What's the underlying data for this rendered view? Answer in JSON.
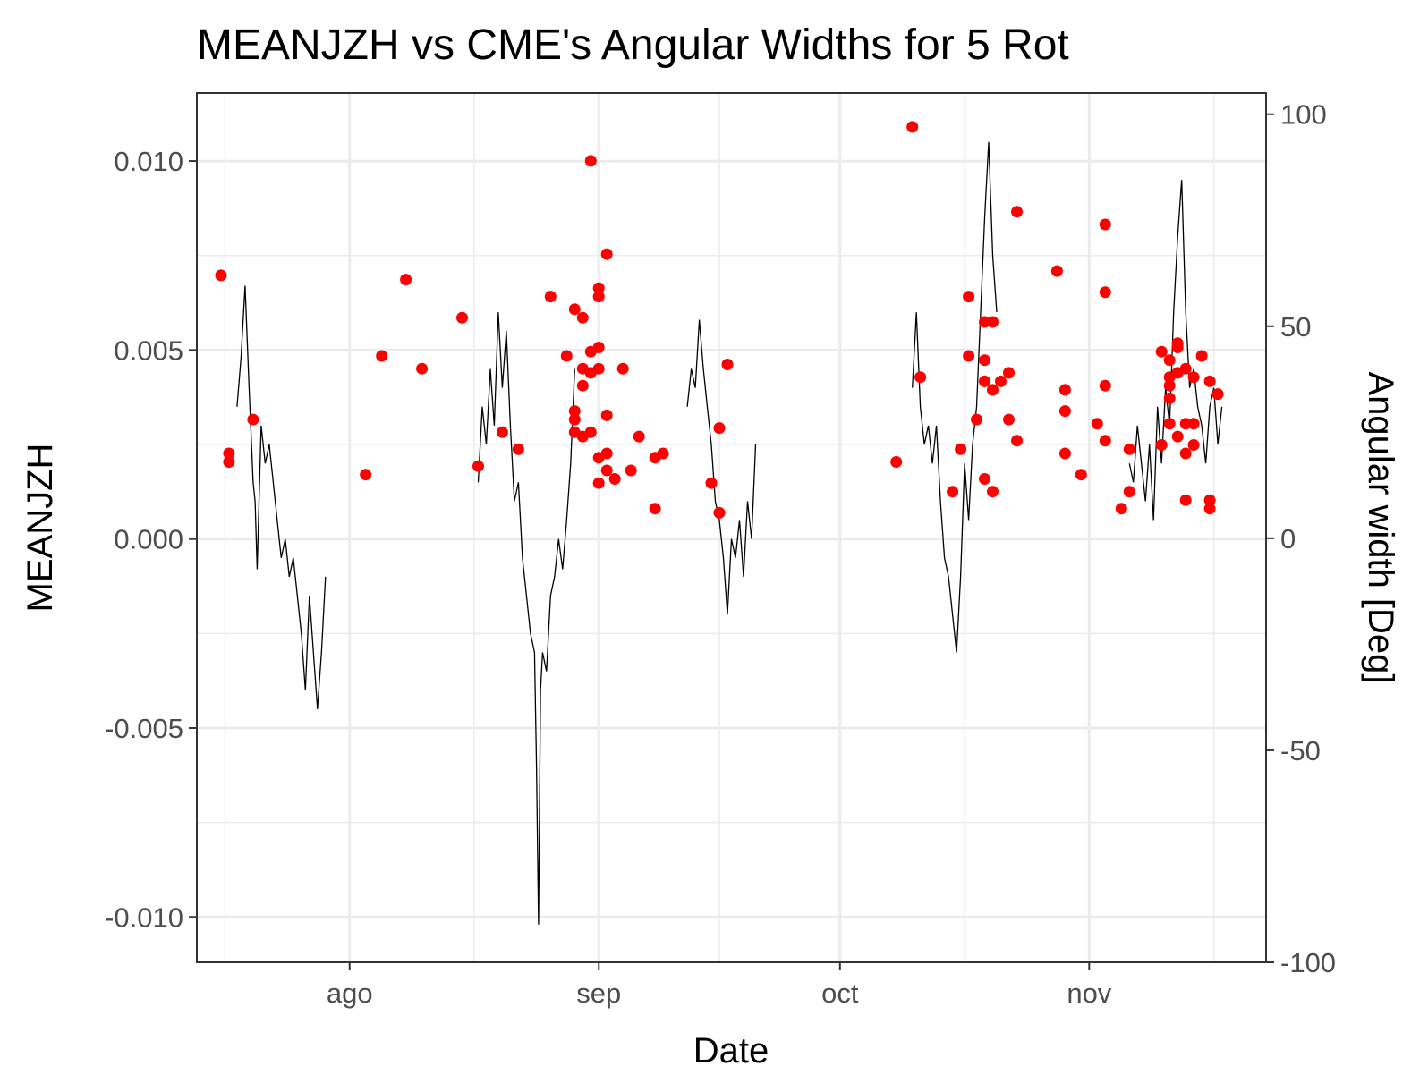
{
  "chart_data": {
    "type": "line",
    "title": "MEANJZH vs  CME's Angular Widths for 5 Rot",
    "xlabel": "Date",
    "ylabel": "MEANJZH",
    "y2label": "Angular width [Deg]",
    "x_range": [
      "2014-07-13",
      "2014-11-23"
    ],
    "ylim": [
      -0.0112,
      0.0118
    ],
    "y2lim": [
      -100,
      105
    ],
    "grid": true,
    "legend": "none",
    "x_ticks": [
      {
        "date": "2014-08-01",
        "label": "ago"
      },
      {
        "date": "2014-09-01",
        "label": "sep"
      },
      {
        "date": "2014-10-01",
        "label": "oct"
      },
      {
        "date": "2014-11-01",
        "label": "nov"
      }
    ],
    "y_ticks": [
      {
        "value": 0.01,
        "label": "0.010"
      },
      {
        "value": 0.005,
        "label": "0.005"
      },
      {
        "value": 0.0,
        "label": "0.000"
      },
      {
        "value": -0.005,
        "label": "-0.005"
      },
      {
        "value": -0.01,
        "label": "-0.010"
      }
    ],
    "y2_ticks": [
      {
        "value": 100,
        "label": "100"
      },
      {
        "value": 50,
        "label": "50"
      },
      {
        "value": 0,
        "label": "0"
      },
      {
        "value": -50,
        "label": "-50"
      },
      {
        "value": -100,
        "label": "-100"
      }
    ],
    "series": [
      {
        "axis": "left",
        "color": "#000000",
        "segments": [
          [
            [
              "2014-07-18T00",
              0.0035
            ],
            [
              "2014-07-18T12",
              0.0048
            ],
            [
              "2014-07-19T00",
              0.0067
            ],
            [
              "2014-07-19T12",
              0.004
            ],
            [
              "2014-07-20T00",
              0.0015
            ],
            [
              "2014-07-20T06",
              0.001
            ],
            [
              "2014-07-20T12",
              -0.0008
            ],
            [
              "2014-07-21T00",
              0.003
            ],
            [
              "2014-07-21T12",
              0.002
            ],
            [
              "2014-07-22T00",
              0.0025
            ],
            [
              "2014-07-22T12",
              0.0015
            ],
            [
              "2014-07-23T00",
              0.0005
            ],
            [
              "2014-07-23T12",
              -0.0005
            ],
            [
              "2014-07-24T00",
              0.0
            ],
            [
              "2014-07-24T12",
              -0.001
            ],
            [
              "2014-07-25T00",
              -0.0005
            ],
            [
              "2014-07-25T12",
              -0.0015
            ],
            [
              "2014-07-26T00",
              -0.0025
            ],
            [
              "2014-07-26T12",
              -0.004
            ],
            [
              "2014-07-27T00",
              -0.0015
            ],
            [
              "2014-07-27T12",
              -0.003
            ],
            [
              "2014-07-28T00",
              -0.0045
            ],
            [
              "2014-07-28T12",
              -0.003
            ],
            [
              "2014-07-29T00",
              -0.001
            ]
          ],
          [
            [
              "2014-08-17T00",
              0.0015
            ],
            [
              "2014-08-17T12",
              0.0035
            ],
            [
              "2014-08-18T00",
              0.0025
            ],
            [
              "2014-08-18T12",
              0.0045
            ],
            [
              "2014-08-19T00",
              0.003
            ],
            [
              "2014-08-19T12",
              0.006
            ],
            [
              "2014-08-20T00",
              0.004
            ],
            [
              "2014-08-20T12",
              0.0055
            ],
            [
              "2014-08-21T00",
              0.003
            ],
            [
              "2014-08-21T12",
              0.001
            ],
            [
              "2014-08-22T00",
              0.0015
            ],
            [
              "2014-08-22T12",
              -0.0005
            ],
            [
              "2014-08-23T00",
              -0.0015
            ],
            [
              "2014-08-23T12",
              -0.0025
            ],
            [
              "2014-08-24T00",
              -0.003
            ],
            [
              "2014-08-24T06",
              -0.006
            ],
            [
              "2014-08-24T12",
              -0.0102
            ],
            [
              "2014-08-24T18",
              -0.004
            ],
            [
              "2014-08-25T00",
              -0.003
            ],
            [
              "2014-08-25T12",
              -0.0035
            ],
            [
              "2014-08-26T00",
              -0.0015
            ],
            [
              "2014-08-26T12",
              -0.001
            ],
            [
              "2014-08-27T00",
              0.0
            ],
            [
              "2014-08-27T12",
              -0.0008
            ],
            [
              "2014-08-28T00",
              0.0005
            ],
            [
              "2014-08-28T12",
              0.002
            ],
            [
              "2014-08-29T00",
              0.0045
            ]
          ],
          [
            [
              "2014-09-12T00",
              0.0035
            ],
            [
              "2014-09-12T12",
              0.0045
            ],
            [
              "2014-09-13T00",
              0.004
            ],
            [
              "2014-09-13T12",
              0.0058
            ],
            [
              "2014-09-14T00",
              0.0045
            ],
            [
              "2014-09-14T12",
              0.0035
            ],
            [
              "2014-09-15T00",
              0.0025
            ],
            [
              "2014-09-15T12",
              0.001
            ],
            [
              "2014-09-16T00",
              0.0005
            ],
            [
              "2014-09-16T12",
              -0.0005
            ],
            [
              "2014-09-17T00",
              -0.002
            ],
            [
              "2014-09-17T12",
              0.0
            ],
            [
              "2014-09-18T00",
              -0.0005
            ],
            [
              "2014-09-18T12",
              0.0005
            ],
            [
              "2014-09-19T00",
              -0.001
            ],
            [
              "2014-09-19T12",
              0.001
            ],
            [
              "2014-09-20T00",
              0.0
            ],
            [
              "2014-09-20T12",
              0.0025
            ]
          ],
          [
            [
              "2014-10-10T00",
              0.004
            ],
            [
              "2014-10-10T12",
              0.006
            ],
            [
              "2014-10-11T00",
              0.0035
            ],
            [
              "2014-10-11T12",
              0.0025
            ],
            [
              "2014-10-12T00",
              0.003
            ],
            [
              "2014-10-12T12",
              0.002
            ],
            [
              "2014-10-13T00",
              0.003
            ],
            [
              "2014-10-13T12",
              0.001
            ],
            [
              "2014-10-14T00",
              -0.0005
            ],
            [
              "2014-10-14T12",
              -0.001
            ],
            [
              "2014-10-15T00",
              -0.002
            ],
            [
              "2014-10-15T12",
              -0.003
            ],
            [
              "2014-10-16T00",
              -0.001
            ],
            [
              "2014-10-16T12",
              0.002
            ],
            [
              "2014-10-17T00",
              0.0005
            ],
            [
              "2014-10-17T12",
              0.0025
            ],
            [
              "2014-10-18T00",
              0.0035
            ],
            [
              "2014-10-18T12",
              0.006
            ],
            [
              "2014-10-19T00",
              0.0085
            ],
            [
              "2014-10-19T12",
              0.0105
            ],
            [
              "2014-10-20T00",
              0.0075
            ],
            [
              "2014-10-20T12",
              0.006
            ]
          ],
          [
            [
              "2014-11-06T00",
              0.002
            ],
            [
              "2014-11-06T12",
              0.0015
            ],
            [
              "2014-11-07T00",
              0.003
            ],
            [
              "2014-11-07T12",
              0.002
            ],
            [
              "2014-11-08T00",
              0.001
            ],
            [
              "2014-11-08T12",
              0.0025
            ],
            [
              "2014-11-09T00",
              0.0005
            ],
            [
              "2014-11-09T12",
              0.0035
            ],
            [
              "2014-11-10T00",
              0.002
            ],
            [
              "2014-11-10T12",
              0.004
            ],
            [
              "2014-11-11T00",
              0.003
            ],
            [
              "2014-11-11T12",
              0.006
            ],
            [
              "2014-11-12T00",
              0.008
            ],
            [
              "2014-11-12T12",
              0.0095
            ],
            [
              "2014-11-13T00",
              0.006
            ],
            [
              "2014-11-13T12",
              0.004
            ],
            [
              "2014-11-14T00",
              0.0045
            ],
            [
              "2014-11-14T12",
              0.0035
            ],
            [
              "2014-11-15T00",
              0.003
            ],
            [
              "2014-11-15T12",
              0.002
            ],
            [
              "2014-11-16T00",
              0.0035
            ],
            [
              "2014-11-16T12",
              0.004
            ],
            [
              "2014-11-17T00",
              0.0025
            ],
            [
              "2014-11-17T12",
              0.0035
            ]
          ]
        ]
      },
      {
        "axis": "right",
        "color": "#ff0000",
        "type": "scatter",
        "points": [
          [
            "2014-07-16",
            62
          ],
          [
            "2014-07-17",
            18
          ],
          [
            "2014-07-17",
            20
          ],
          [
            "2014-07-20",
            28
          ],
          [
            "2014-08-03",
            15
          ],
          [
            "2014-08-05",
            43
          ],
          [
            "2014-08-08",
            61
          ],
          [
            "2014-08-10",
            40
          ],
          [
            "2014-08-15",
            52
          ],
          [
            "2014-08-17",
            17
          ],
          [
            "2014-08-20",
            25
          ],
          [
            "2014-08-22",
            21
          ],
          [
            "2014-08-26",
            57
          ],
          [
            "2014-08-28",
            43
          ],
          [
            "2014-08-29",
            54
          ],
          [
            "2014-08-29",
            30
          ],
          [
            "2014-08-29",
            28
          ],
          [
            "2014-08-29",
            25
          ],
          [
            "2014-08-30",
            52
          ],
          [
            "2014-08-30",
            40
          ],
          [
            "2014-08-30",
            36
          ],
          [
            "2014-08-30",
            24
          ],
          [
            "2014-08-31",
            44
          ],
          [
            "2014-08-31",
            39
          ],
          [
            "2014-08-31",
            89
          ],
          [
            "2014-08-31",
            25
          ],
          [
            "2014-09-01",
            57
          ],
          [
            "2014-09-01",
            59
          ],
          [
            "2014-09-01",
            45
          ],
          [
            "2014-09-01",
            40
          ],
          [
            "2014-09-01",
            19
          ],
          [
            "2014-09-01",
            13
          ],
          [
            "2014-09-02",
            67
          ],
          [
            "2014-09-02",
            29
          ],
          [
            "2014-09-02",
            20
          ],
          [
            "2014-09-02",
            16
          ],
          [
            "2014-09-03",
            14
          ],
          [
            "2014-09-04",
            40
          ],
          [
            "2014-09-05",
            16
          ],
          [
            "2014-09-06",
            24
          ],
          [
            "2014-09-08",
            19
          ],
          [
            "2014-09-08",
            7
          ],
          [
            "2014-09-09",
            20
          ],
          [
            "2014-09-15",
            13
          ],
          [
            "2014-09-16",
            6
          ],
          [
            "2014-09-16",
            26
          ],
          [
            "2014-09-17",
            41
          ],
          [
            "2014-10-08",
            18
          ],
          [
            "2014-10-10",
            97
          ],
          [
            "2014-10-11",
            38
          ],
          [
            "2014-10-15",
            11
          ],
          [
            "2014-10-16",
            21
          ],
          [
            "2014-10-17",
            43
          ],
          [
            "2014-10-17",
            57
          ],
          [
            "2014-10-18",
            28
          ],
          [
            "2014-10-19",
            51
          ],
          [
            "2014-10-19",
            42
          ],
          [
            "2014-10-19",
            37
          ],
          [
            "2014-10-19",
            14
          ],
          [
            "2014-10-20",
            51
          ],
          [
            "2014-10-20",
            35
          ],
          [
            "2014-10-20",
            11
          ],
          [
            "2014-10-21",
            37
          ],
          [
            "2014-10-22",
            39
          ],
          [
            "2014-10-22",
            28
          ],
          [
            "2014-10-23",
            23
          ],
          [
            "2014-10-23",
            77
          ],
          [
            "2014-10-28",
            63
          ],
          [
            "2014-10-29",
            35
          ],
          [
            "2014-10-29",
            30
          ],
          [
            "2014-10-29",
            20
          ],
          [
            "2014-10-31",
            15
          ],
          [
            "2014-11-02",
            27
          ],
          [
            "2014-11-03",
            23
          ],
          [
            "2014-11-03",
            74
          ],
          [
            "2014-11-03",
            58
          ],
          [
            "2014-11-03",
            36
          ],
          [
            "2014-11-05",
            7
          ],
          [
            "2014-11-06",
            11
          ],
          [
            "2014-11-06",
            21
          ],
          [
            "2014-11-10",
            22
          ],
          [
            "2014-11-10",
            44
          ],
          [
            "2014-11-11",
            42
          ],
          [
            "2014-11-11",
            36
          ],
          [
            "2014-11-11",
            33
          ],
          [
            "2014-11-11",
            27
          ],
          [
            "2014-11-11",
            38
          ],
          [
            "2014-11-12",
            45
          ],
          [
            "2014-11-12",
            39
          ],
          [
            "2014-11-12",
            24
          ],
          [
            "2014-11-12",
            46
          ],
          [
            "2014-11-13",
            40
          ],
          [
            "2014-11-13",
            27
          ],
          [
            "2014-11-13",
            20
          ],
          [
            "2014-11-13",
            9
          ],
          [
            "2014-11-14",
            38
          ],
          [
            "2014-11-14",
            27
          ],
          [
            "2014-11-14",
            22
          ],
          [
            "2014-11-15",
            43
          ],
          [
            "2014-11-16",
            37
          ],
          [
            "2014-11-16",
            9
          ],
          [
            "2014-11-16",
            7
          ],
          [
            "2014-11-17",
            34
          ]
        ]
      }
    ]
  }
}
